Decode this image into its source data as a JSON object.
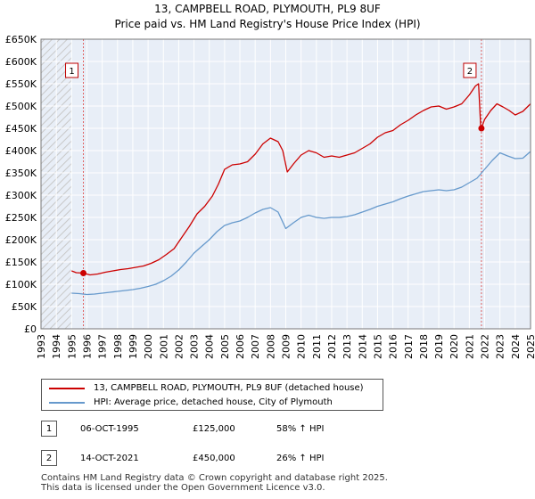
{
  "title_line1": "13, CAMPBELL ROAD, PLYMOUTH, PL9 8UF",
  "title_line2": "Price paid vs. HM Land Registry's House Price Index (HPI)",
  "chart_data": {
    "type": "line",
    "xlim": [
      1993,
      2025
    ],
    "ylim": [
      0,
      650000
    ],
    "x_ticks": [
      "1993",
      "1994",
      "1995",
      "1996",
      "1997",
      "1998",
      "1999",
      "2000",
      "2001",
      "2002",
      "2003",
      "2004",
      "2005",
      "2006",
      "2007",
      "2008",
      "2009",
      "2010",
      "2011",
      "2012",
      "2013",
      "2014",
      "2015",
      "2016",
      "2017",
      "2018",
      "2019",
      "2020",
      "2021",
      "2022",
      "2023",
      "2024",
      "2025"
    ],
    "y_ticks": [
      {
        "value": 0,
        "label": "£0"
      },
      {
        "value": 50000,
        "label": "£50K"
      },
      {
        "value": 100000,
        "label": "£100K"
      },
      {
        "value": 150000,
        "label": "£150K"
      },
      {
        "value": 200000,
        "label": "£200K"
      },
      {
        "value": 250000,
        "label": "£250K"
      },
      {
        "value": 300000,
        "label": "£300K"
      },
      {
        "value": 350000,
        "label": "£350K"
      },
      {
        "value": 400000,
        "label": "£400K"
      },
      {
        "value": 450000,
        "label": "£450K"
      },
      {
        "value": 500000,
        "label": "£500K"
      },
      {
        "value": 550000,
        "label": "£550K"
      },
      {
        "value": 600000,
        "label": "£600K"
      },
      {
        "value": 650000,
        "label": "£650K"
      }
    ],
    "hatched_regions": [
      [
        1993,
        1995.0
      ],
      [
        2025.0,
        2025.3
      ]
    ],
    "series": [
      {
        "name": "13, CAMPBELL ROAD, PLYMOUTH, PL9 8UF (detached house)",
        "color": "#cc0000",
        "points": [
          [
            1995.0,
            130000
          ],
          [
            1995.3,
            126000
          ],
          [
            1995.77,
            125000
          ],
          [
            1996.2,
            121000
          ],
          [
            1996.7,
            123000
          ],
          [
            1997.2,
            127000
          ],
          [
            1997.7,
            130000
          ],
          [
            1998.2,
            133000
          ],
          [
            1998.7,
            135000
          ],
          [
            1999.2,
            138000
          ],
          [
            1999.7,
            141000
          ],
          [
            2000.2,
            147000
          ],
          [
            2000.7,
            155000
          ],
          [
            2001.2,
            167000
          ],
          [
            2001.7,
            180000
          ],
          [
            2002.2,
            205000
          ],
          [
            2002.7,
            230000
          ],
          [
            2003.2,
            258000
          ],
          [
            2003.7,
            275000
          ],
          [
            2004.2,
            298000
          ],
          [
            2004.6,
            325000
          ],
          [
            2005.0,
            358000
          ],
          [
            2005.5,
            368000
          ],
          [
            2006.0,
            370000
          ],
          [
            2006.5,
            375000
          ],
          [
            2007.0,
            392000
          ],
          [
            2007.5,
            415000
          ],
          [
            2008.0,
            428000
          ],
          [
            2008.5,
            420000
          ],
          [
            2008.8,
            400000
          ],
          [
            2009.1,
            352000
          ],
          [
            2009.5,
            370000
          ],
          [
            2010.0,
            390000
          ],
          [
            2010.5,
            400000
          ],
          [
            2011.0,
            395000
          ],
          [
            2011.5,
            385000
          ],
          [
            2012.0,
            388000
          ],
          [
            2012.5,
            385000
          ],
          [
            2013.0,
            390000
          ],
          [
            2013.5,
            395000
          ],
          [
            2014.0,
            405000
          ],
          [
            2014.5,
            415000
          ],
          [
            2015.0,
            430000
          ],
          [
            2015.5,
            440000
          ],
          [
            2016.0,
            445000
          ],
          [
            2016.5,
            458000
          ],
          [
            2017.0,
            468000
          ],
          [
            2017.5,
            480000
          ],
          [
            2018.0,
            490000
          ],
          [
            2018.5,
            498000
          ],
          [
            2019.0,
            500000
          ],
          [
            2019.5,
            493000
          ],
          [
            2020.0,
            498000
          ],
          [
            2020.5,
            505000
          ],
          [
            2021.0,
            525000
          ],
          [
            2021.4,
            545000
          ],
          [
            2021.6,
            550000
          ],
          [
            2021.75,
            450000
          ],
          [
            2021.78,
            450000
          ],
          [
            2022.0,
            470000
          ],
          [
            2022.4,
            490000
          ],
          [
            2022.8,
            505000
          ],
          [
            2023.2,
            498000
          ],
          [
            2023.6,
            490000
          ],
          [
            2024.0,
            480000
          ],
          [
            2024.5,
            488000
          ],
          [
            2025.0,
            505000
          ]
        ]
      },
      {
        "name": "HPI: Average price, detached house, City of Plymouth",
        "color": "#6699cc",
        "points": [
          [
            1995.0,
            80000
          ],
          [
            1995.5,
            79000
          ],
          [
            1996.0,
            77000
          ],
          [
            1996.5,
            78000
          ],
          [
            1997.0,
            80000
          ],
          [
            1997.5,
            82000
          ],
          [
            1998.0,
            84000
          ],
          [
            1998.5,
            86000
          ],
          [
            1999.0,
            88000
          ],
          [
            1999.5,
            91000
          ],
          [
            2000.0,
            95000
          ],
          [
            2000.5,
            100000
          ],
          [
            2001.0,
            108000
          ],
          [
            2001.5,
            118000
          ],
          [
            2002.0,
            132000
          ],
          [
            2002.5,
            150000
          ],
          [
            2003.0,
            170000
          ],
          [
            2003.5,
            185000
          ],
          [
            2004.0,
            200000
          ],
          [
            2004.5,
            218000
          ],
          [
            2005.0,
            232000
          ],
          [
            2005.5,
            238000
          ],
          [
            2006.0,
            242000
          ],
          [
            2006.5,
            250000
          ],
          [
            2007.0,
            260000
          ],
          [
            2007.5,
            268000
          ],
          [
            2008.0,
            272000
          ],
          [
            2008.5,
            262000
          ],
          [
            2009.0,
            225000
          ],
          [
            2009.5,
            238000
          ],
          [
            2010.0,
            250000
          ],
          [
            2010.5,
            255000
          ],
          [
            2011.0,
            250000
          ],
          [
            2011.5,
            248000
          ],
          [
            2012.0,
            250000
          ],
          [
            2012.5,
            250000
          ],
          [
            2013.0,
            252000
          ],
          [
            2013.5,
            256000
          ],
          [
            2014.0,
            262000
          ],
          [
            2014.5,
            268000
          ],
          [
            2015.0,
            275000
          ],
          [
            2015.5,
            280000
          ],
          [
            2016.0,
            285000
          ],
          [
            2016.5,
            292000
          ],
          [
            2017.0,
            298000
          ],
          [
            2017.5,
            303000
          ],
          [
            2018.0,
            308000
          ],
          [
            2018.5,
            310000
          ],
          [
            2019.0,
            312000
          ],
          [
            2019.5,
            310000
          ],
          [
            2020.0,
            312000
          ],
          [
            2020.5,
            318000
          ],
          [
            2021.0,
            328000
          ],
          [
            2021.5,
            338000
          ],
          [
            2022.0,
            358000
          ],
          [
            2022.5,
            378000
          ],
          [
            2023.0,
            395000
          ],
          [
            2023.5,
            388000
          ],
          [
            2024.0,
            382000
          ],
          [
            2024.5,
            383000
          ],
          [
            2025.0,
            398000
          ]
        ]
      }
    ],
    "sales": [
      {
        "id": "1",
        "x": 1995.77,
        "y": 125000
      },
      {
        "id": "2",
        "x": 2021.79,
        "y": 450000
      }
    ]
  },
  "legend": [
    {
      "label": "13, CAMPBELL ROAD, PLYMOUTH, PL9 8UF (detached house)",
      "color": "#cc0000"
    },
    {
      "label": "HPI: Average price, detached house, City of Plymouth",
      "color": "#6699cc"
    }
  ],
  "transactions": [
    {
      "id": "1",
      "date": "06-OCT-1995",
      "price": "£125,000",
      "hpi": "58% ↑ HPI"
    },
    {
      "id": "2",
      "date": "14-OCT-2021",
      "price": "£450,000",
      "hpi": "26% ↑ HPI"
    }
  ],
  "footer_line1": "Contains HM Land Registry data © Crown copyright and database right 2025.",
  "footer_line2": "This data is licensed under the Open Government Licence v3.0."
}
